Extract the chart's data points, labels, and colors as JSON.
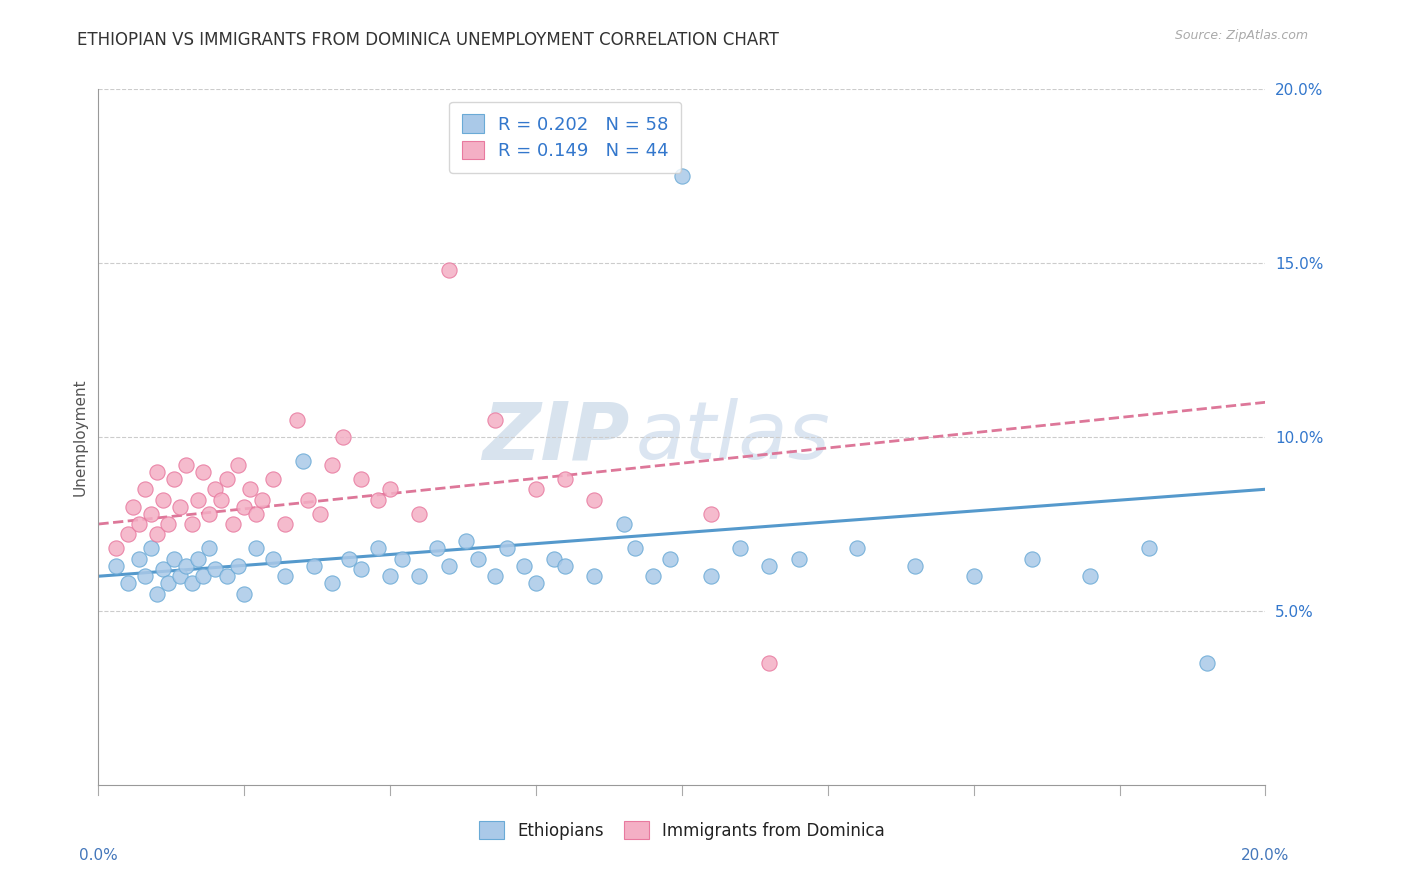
{
  "title": "ETHIOPIAN VS IMMIGRANTS FROM DOMINICA UNEMPLOYMENT CORRELATION CHART",
  "source": "Source: ZipAtlas.com",
  "ylabel": "Unemployment",
  "xlim": [
    0.0,
    0.2
  ],
  "ylim": [
    0.0,
    0.2
  ],
  "yticks": [
    0.05,
    0.1,
    0.15,
    0.2
  ],
  "ytick_labels": [
    "5.0%",
    "10.0%",
    "15.0%",
    "20.0%"
  ],
  "blue_R": 0.202,
  "blue_N": 58,
  "pink_R": 0.149,
  "pink_N": 44,
  "blue_color": "#aac9e8",
  "pink_color": "#f4afc5",
  "blue_edge": "#6aaad6",
  "pink_edge": "#e8799f",
  "blue_trend_color": "#5599cc",
  "pink_trend_color": "#dd7799",
  "blue_label": "Ethiopians",
  "pink_label": "Immigrants from Dominica",
  "legend_color": "#3377cc",
  "title_color": "#333333",
  "grid_color": "#cccccc",
  "source_color": "#aaaaaa",
  "blue_scatter_x": [
    0.003,
    0.005,
    0.007,
    0.008,
    0.009,
    0.01,
    0.011,
    0.012,
    0.013,
    0.014,
    0.015,
    0.016,
    0.017,
    0.018,
    0.019,
    0.02,
    0.022,
    0.024,
    0.025,
    0.027,
    0.03,
    0.032,
    0.035,
    0.037,
    0.04,
    0.043,
    0.045,
    0.048,
    0.05,
    0.052,
    0.055,
    0.058,
    0.06,
    0.063,
    0.065,
    0.068,
    0.07,
    0.073,
    0.075,
    0.078,
    0.08,
    0.085,
    0.09,
    0.092,
    0.095,
    0.098,
    0.1,
    0.105,
    0.11,
    0.115,
    0.12,
    0.13,
    0.14,
    0.15,
    0.16,
    0.17,
    0.18,
    0.19
  ],
  "blue_scatter_y": [
    0.063,
    0.058,
    0.065,
    0.06,
    0.068,
    0.055,
    0.062,
    0.058,
    0.065,
    0.06,
    0.063,
    0.058,
    0.065,
    0.06,
    0.068,
    0.062,
    0.06,
    0.063,
    0.055,
    0.068,
    0.065,
    0.06,
    0.093,
    0.063,
    0.058,
    0.065,
    0.062,
    0.068,
    0.06,
    0.065,
    0.06,
    0.068,
    0.063,
    0.07,
    0.065,
    0.06,
    0.068,
    0.063,
    0.058,
    0.065,
    0.063,
    0.06,
    0.075,
    0.068,
    0.06,
    0.065,
    0.175,
    0.06,
    0.068,
    0.063,
    0.065,
    0.068,
    0.063,
    0.06,
    0.065,
    0.06,
    0.068,
    0.035
  ],
  "pink_scatter_x": [
    0.003,
    0.005,
    0.006,
    0.007,
    0.008,
    0.009,
    0.01,
    0.01,
    0.011,
    0.012,
    0.013,
    0.014,
    0.015,
    0.016,
    0.017,
    0.018,
    0.019,
    0.02,
    0.021,
    0.022,
    0.023,
    0.024,
    0.025,
    0.026,
    0.027,
    0.028,
    0.03,
    0.032,
    0.034,
    0.036,
    0.038,
    0.04,
    0.042,
    0.045,
    0.048,
    0.05,
    0.055,
    0.06,
    0.068,
    0.075,
    0.08,
    0.085,
    0.105,
    0.115
  ],
  "pink_scatter_y": [
    0.068,
    0.072,
    0.08,
    0.075,
    0.085,
    0.078,
    0.09,
    0.072,
    0.082,
    0.075,
    0.088,
    0.08,
    0.092,
    0.075,
    0.082,
    0.09,
    0.078,
    0.085,
    0.082,
    0.088,
    0.075,
    0.092,
    0.08,
    0.085,
    0.078,
    0.082,
    0.088,
    0.075,
    0.105,
    0.082,
    0.078,
    0.092,
    0.1,
    0.088,
    0.082,
    0.085,
    0.078,
    0.148,
    0.105,
    0.085,
    0.088,
    0.082,
    0.078,
    0.035
  ],
  "blue_trend_x0": 0.0,
  "blue_trend_y0": 0.06,
  "blue_trend_x1": 0.2,
  "blue_trend_y1": 0.085,
  "pink_trend_x0": 0.0,
  "pink_trend_y0": 0.075,
  "pink_trend_x1": 0.2,
  "pink_trend_y1": 0.11
}
